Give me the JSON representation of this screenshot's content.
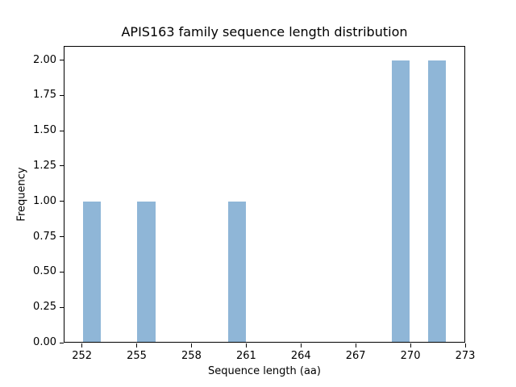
{
  "chart_data": {
    "type": "bar",
    "subtype": "histogram",
    "title": "APIS163 family sequence length distribution",
    "xlabel": "Sequence length (aa)",
    "ylabel": "Frequency",
    "xlim": [
      251,
      273
    ],
    "ylim": [
      0,
      2.1
    ],
    "grid": false,
    "legend": null,
    "bar_color": "#8fb6d7",
    "axis_color": "#000000",
    "text_color": "#000000",
    "background_color": "#ffffff",
    "bin_width": 1,
    "bars": [
      {
        "bin_start": 252,
        "frequency": 1
      },
      {
        "bin_start": 255,
        "frequency": 1
      },
      {
        "bin_start": 260,
        "frequency": 1
      },
      {
        "bin_start": 269,
        "frequency": 2
      },
      {
        "bin_start": 271,
        "frequency": 2
      }
    ],
    "xtick_values": [
      252,
      255,
      258,
      261,
      264,
      267,
      270,
      273
    ],
    "xtick_labels": [
      "252",
      "255",
      "258",
      "261",
      "264",
      "267",
      "270",
      "273"
    ],
    "ytick_values": [
      0,
      0.25,
      0.5,
      0.75,
      1.0,
      1.25,
      1.5,
      1.75,
      2.0
    ],
    "ytick_labels": [
      "0.00",
      "0.25",
      "0.50",
      "0.75",
      "1.00",
      "1.25",
      "1.50",
      "1.75",
      "2.00"
    ]
  }
}
